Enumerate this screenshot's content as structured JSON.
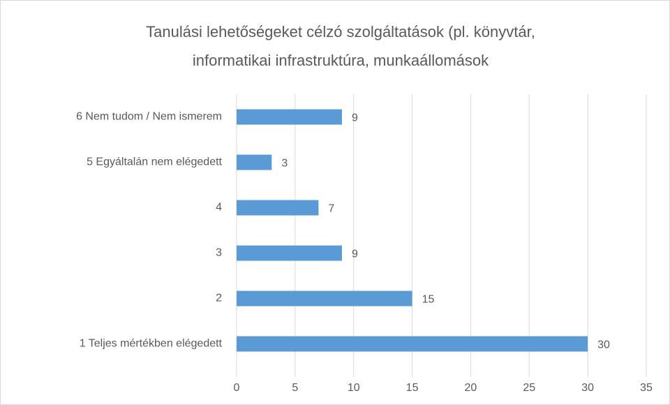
{
  "chart_data": {
    "type": "bar",
    "orientation": "horizontal",
    "title": [
      "Tanulási lehetőségeket célzó szolgáltatások (pl. könyvtár,",
      "informatikai infrastruktúra, munkaállomások"
    ],
    "categories": [
      "6 Nem tudom / Nem ismerem",
      "5 Egyáltalán nem elégedett",
      "4",
      "3",
      "2",
      "1 Teljes mértékben elégedett"
    ],
    "values": [
      9,
      3,
      7,
      9,
      15,
      30
    ],
    "color": "#5b9bd5",
    "xlim": [
      0,
      35
    ],
    "xticks": [
      0,
      5,
      10,
      15,
      20,
      25,
      30,
      35
    ],
    "grid": true
  }
}
